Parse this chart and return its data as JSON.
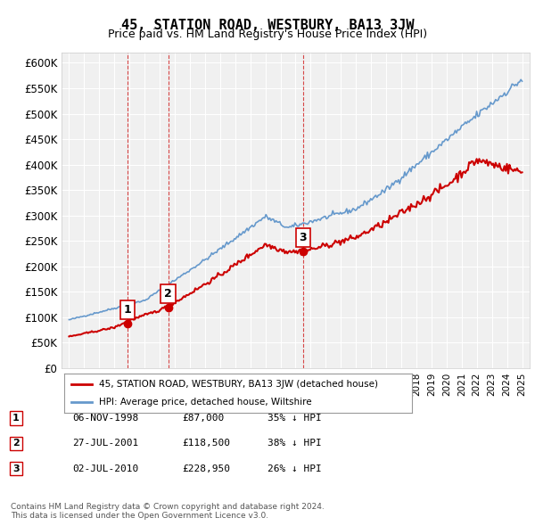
{
  "title": "45, STATION ROAD, WESTBURY, BA13 3JW",
  "subtitle": "Price paid vs. HM Land Registry's House Price Index (HPI)",
  "red_label": "45, STATION ROAD, WESTBURY, BA13 3JW (detached house)",
  "blue_label": "HPI: Average price, detached house, Wiltshire",
  "transactions": [
    {
      "num": 1,
      "date": "06-NOV-1998",
      "price": "£87,000",
      "hpi": "35% ↓ HPI",
      "year": 1998.85,
      "value": 87000
    },
    {
      "num": 2,
      "date": "27-JUL-2001",
      "price": "£118,500",
      "hpi": "38% ↓ HPI",
      "year": 2001.56,
      "value": 118500
    },
    {
      "num": 3,
      "date": "02-JUL-2010",
      "price": "£228,950",
      "hpi": "26% ↓ HPI",
      "year": 2010.5,
      "value": 228950
    }
  ],
  "footer": "Contains HM Land Registry data © Crown copyright and database right 2024.\nThis data is licensed under the Open Government Licence v3.0.",
  "ylim": [
    0,
    620000
  ],
  "yticks": [
    0,
    50000,
    100000,
    150000,
    200000,
    250000,
    300000,
    350000,
    400000,
    450000,
    500000,
    550000,
    600000
  ],
  "ylabel_fmt": "£{0}K",
  "background_color": "#ffffff",
  "plot_bg": "#f0f0f0",
  "grid_color": "#ffffff",
  "red_color": "#cc0000",
  "blue_color": "#6699cc",
  "blue_color2": "#aaccee"
}
